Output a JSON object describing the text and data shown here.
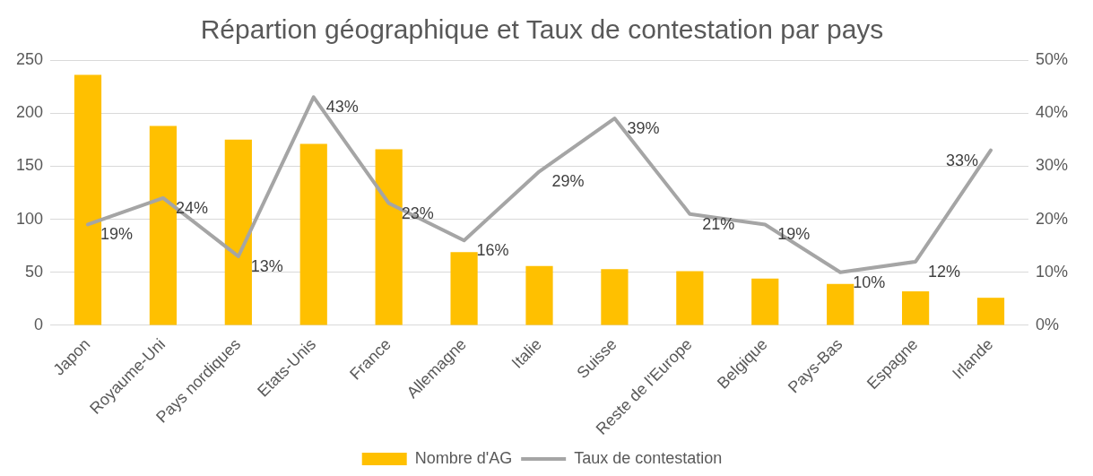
{
  "chart_data": {
    "type": "bar",
    "title": "Répartion géographique et Taux de contestation par pays",
    "categories": [
      "Japon",
      "Royaume-Uni",
      "Pays nordiques",
      "Etats-Unis",
      "France",
      "Allemagne",
      "Italie",
      "Suisse",
      "Reste de l'Europe",
      "Belgique",
      "Pays-Bas",
      "Espagne",
      "Irlande"
    ],
    "series": [
      {
        "name": "Nombre d'AG",
        "type": "bar",
        "color": "#ffc000",
        "values": [
          236,
          188,
          175,
          171,
          166,
          69,
          56,
          53,
          51,
          44,
          39,
          32,
          26
        ]
      },
      {
        "name": "Taux de contestation",
        "type": "line",
        "axis": "y2",
        "color": "#a5a5a5",
        "values": [
          19,
          24,
          13,
          43,
          23,
          16,
          29,
          39,
          21,
          19,
          10,
          12,
          33
        ],
        "value_labels": [
          "19%",
          "24%",
          "13%",
          "43%",
          "23%",
          "16%",
          "29%",
          "39%",
          "21%",
          "19%",
          "10%",
          "12%",
          "33%"
        ]
      }
    ],
    "ylim": [
      0,
      250
    ],
    "yticks": [
      0,
      50,
      100,
      150,
      200,
      250
    ],
    "y2lim": [
      0,
      50
    ],
    "y2ticks": [
      {
        "value": 0,
        "label": "0%"
      },
      {
        "value": 10,
        "label": "10%"
      },
      {
        "value": 20,
        "label": "20%"
      },
      {
        "value": 30,
        "label": "30%"
      },
      {
        "value": 40,
        "label": "40%"
      },
      {
        "value": 50,
        "label": "50%"
      }
    ],
    "grid": "y",
    "legend": "bottom",
    "marker": "none"
  }
}
